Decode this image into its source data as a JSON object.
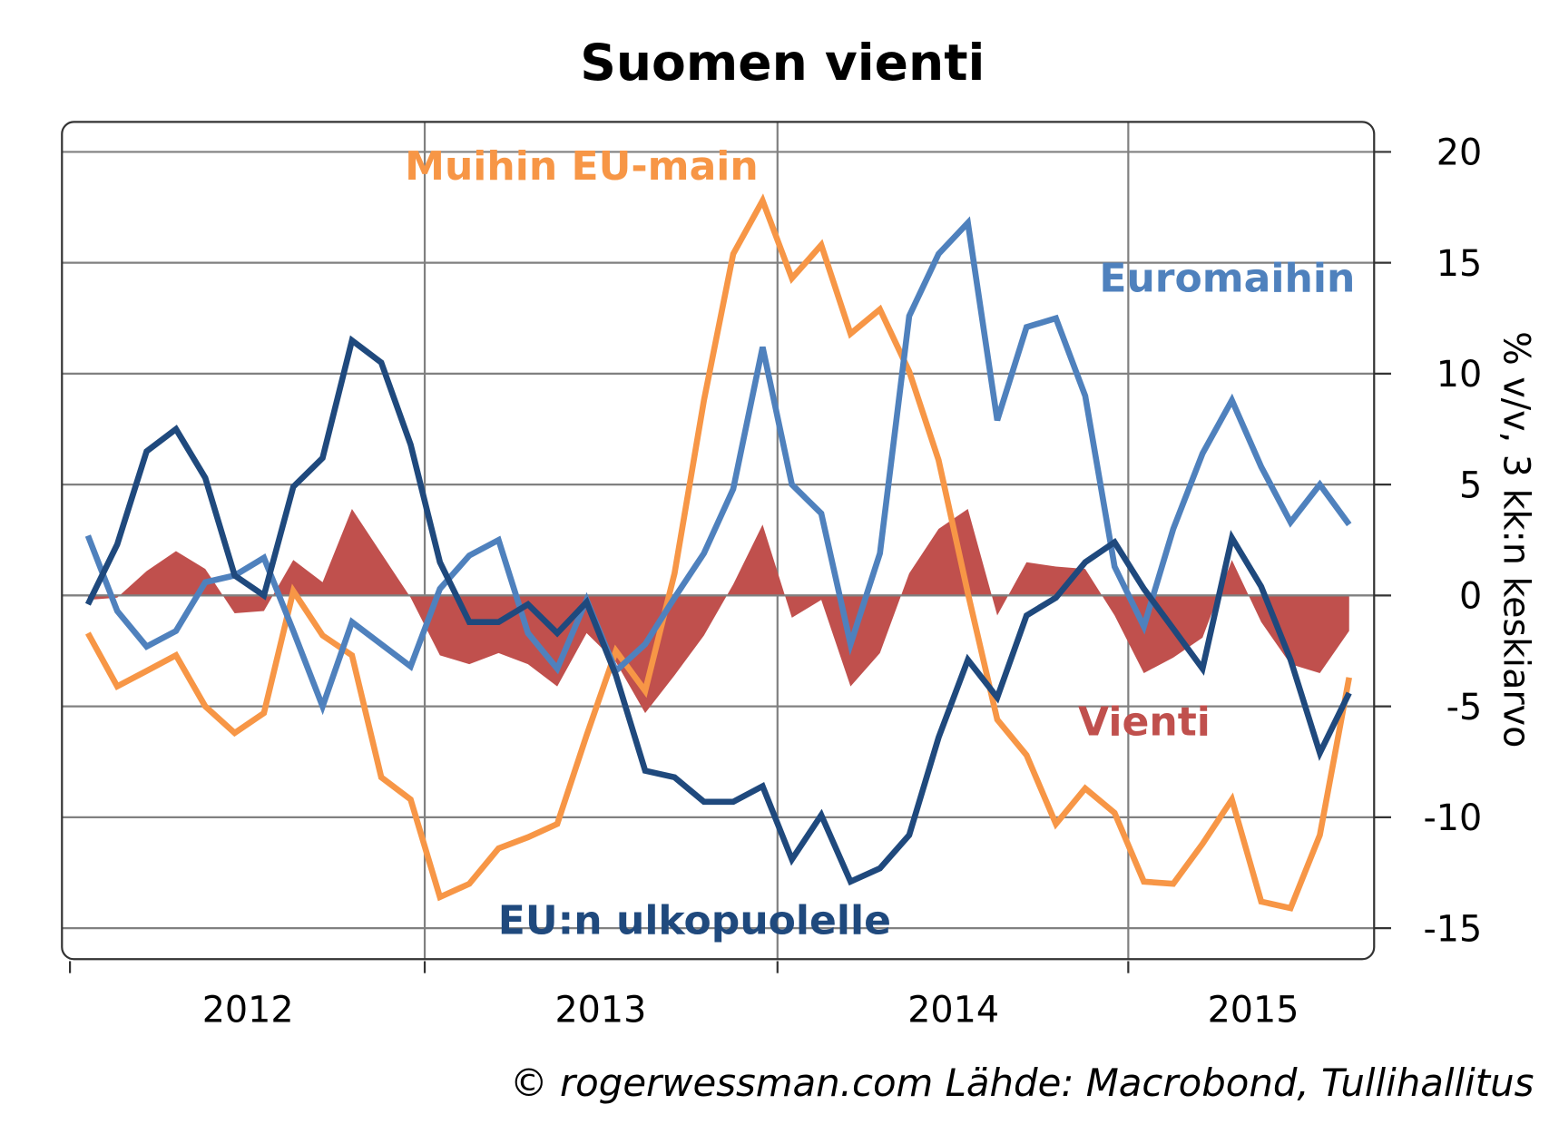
{
  "chart_data": {
    "type": "line",
    "title": "Suomen vienti",
    "ylabel": "% v/v, 3 kk:n keskiarvo",
    "ylim": [
      -16,
      21
    ],
    "yticks": [
      20,
      15,
      10,
      5,
      0,
      -5,
      -10,
      -15
    ],
    "xtick_labels": [
      "2012",
      "2013",
      "2014",
      "2015"
    ],
    "grid": true,
    "y_axis_side": "right",
    "source": "© rogerwessman.com Lähde: Macrobond, Tullihallitus",
    "x": [
      "2012-01",
      "2012-02",
      "2012-03",
      "2012-04",
      "2012-05",
      "2012-06",
      "2012-07",
      "2012-08",
      "2012-09",
      "2012-10",
      "2012-11",
      "2012-12",
      "2013-01",
      "2013-02",
      "2013-03",
      "2013-04",
      "2013-05",
      "2013-06",
      "2013-07",
      "2013-08",
      "2013-09",
      "2013-10",
      "2013-11",
      "2013-12",
      "2014-01",
      "2014-02",
      "2014-03",
      "2014-04",
      "2014-05",
      "2014-06",
      "2014-07",
      "2014-08",
      "2014-09",
      "2014-10",
      "2014-11",
      "2014-12",
      "2015-01",
      "2015-02",
      "2015-03",
      "2015-04",
      "2015-05",
      "2015-06",
      "2015-07",
      "2015-08"
    ],
    "series": [
      {
        "name": "Vienti",
        "style": "area",
        "color": "#c0504d",
        "values": [
          -0.2,
          -0.1,
          1.1,
          2.0,
          1.2,
          -0.8,
          -0.7,
          1.6,
          0.6,
          3.9,
          1.9,
          -0.1,
          -2.7,
          -3.1,
          -2.6,
          -3.1,
          -4.1,
          -1.7,
          -3.0,
          -5.3,
          -3.6,
          -1.8,
          0.5,
          3.2,
          -1.0,
          -0.2,
          -4.1,
          -2.6,
          1.0,
          3.0,
          3.9,
          -0.9,
          1.5,
          1.3,
          1.2,
          -0.9,
          -3.5,
          -2.8,
          -1.9,
          1.6,
          -1.2,
          -3.1,
          -3.5,
          -1.6
        ]
      },
      {
        "name": "Muihin EU-main",
        "style": "line",
        "color": "#f79646",
        "values": [
          -1.7,
          -4.1,
          -3.4,
          -2.7,
          -5.0,
          -6.2,
          -5.3,
          0.2,
          -1.8,
          -2.7,
          -8.2,
          -9.2,
          -13.6,
          -13.0,
          -11.4,
          -10.9,
          -10.3,
          -6.3,
          -2.5,
          -4.3,
          1.0,
          8.8,
          15.4,
          17.8,
          14.3,
          15.8,
          11.8,
          12.9,
          10.1,
          6.1,
          0.1,
          -5.6,
          -7.2,
          -10.3,
          -8.7,
          -9.8,
          -12.9,
          -13.0,
          -11.2,
          -9.2,
          -13.8,
          -14.1,
          -10.8,
          -3.7
        ]
      },
      {
        "name": "Euromaihin",
        "style": "line",
        "color": "#4f81bd",
        "values": [
          2.7,
          -0.7,
          -2.3,
          -1.6,
          0.6,
          0.9,
          1.7,
          -1.6,
          -5.0,
          -1.2,
          -2.2,
          -3.2,
          0.3,
          1.8,
          2.5,
          -1.7,
          -3.3,
          -0.2,
          -3.4,
          -2.2,
          -0.1,
          1.9,
          4.8,
          11.2,
          5.0,
          3.7,
          -2.2,
          1.9,
          12.6,
          15.4,
          16.8,
          7.9,
          12.1,
          12.5,
          9.0,
          1.3,
          -1.4,
          3.0,
          6.4,
          8.8,
          5.8,
          3.3,
          5.0,
          3.2
        ]
      },
      {
        "name": "EU:n ulkopuolelle",
        "style": "line",
        "color": "#1f497d",
        "values": [
          -0.4,
          2.3,
          6.5,
          7.5,
          5.3,
          0.9,
          0.0,
          4.9,
          6.2,
          11.5,
          10.5,
          6.8,
          1.5,
          -1.2,
          -1.2,
          -0.4,
          -1.7,
          -0.3,
          -3.6,
          -7.9,
          -8.2,
          -9.3,
          -9.3,
          -8.6,
          -11.9,
          -9.9,
          -12.9,
          -12.3,
          -10.8,
          -6.4,
          -2.9,
          -4.6,
          -0.9,
          -0.1,
          1.5,
          2.4,
          0.3,
          -1.5,
          -3.3,
          2.6,
          0.4,
          -2.9,
          -7.1,
          -4.4
        ]
      }
    ]
  }
}
